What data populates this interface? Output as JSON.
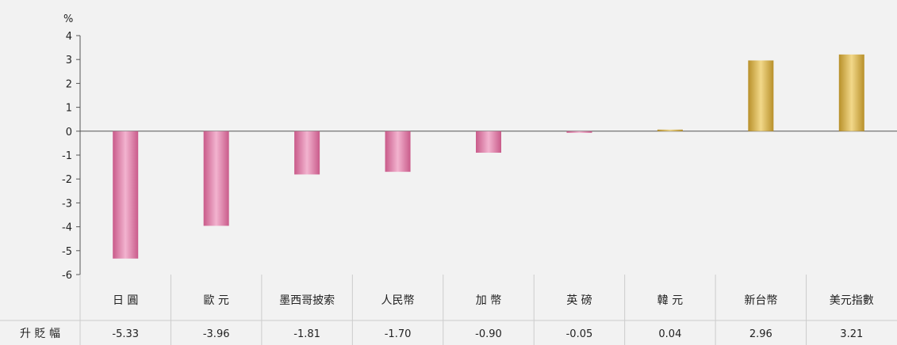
{
  "chart_data": {
    "type": "bar",
    "yunit": "%",
    "categories": [
      "日 圓",
      "歐 元",
      "墨西哥披索",
      "人民幣",
      "加 幣",
      "英 磅",
      "韓 元",
      "新台幣",
      "美元指數"
    ],
    "values": [
      -5.33,
      -3.96,
      -1.81,
      -1.7,
      -0.9,
      -0.05,
      0.04,
      2.96,
      3.21
    ],
    "value_labels": [
      "-5.33",
      "-3.96",
      "-1.81",
      "-1.70",
      "-0.90",
      "-0.05",
      "0.04",
      "2.96",
      "3.21"
    ],
    "row_label": "升 貶 幅",
    "ylim": [
      -6,
      4
    ],
    "yticks": [
      4,
      3,
      2,
      1,
      0,
      -1,
      -2,
      -3,
      -4,
      -5,
      -6
    ],
    "ytick_labels": [
      "4",
      "3",
      "2",
      "1",
      "0",
      "-1",
      "-2",
      "-3",
      "-4",
      "-5",
      "-6"
    ],
    "colors": {
      "negative_dark": "#c95b8a",
      "negative_light": "#f2b3cf",
      "positive_dark": "#b8902a",
      "positive_light": "#f2d889",
      "axis": "#555555",
      "grid": "#cccccc"
    }
  }
}
